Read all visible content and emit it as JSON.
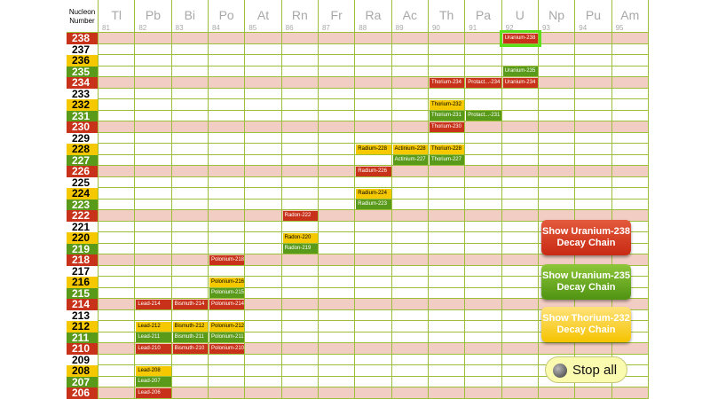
{
  "header": {
    "nucleon_title": [
      "Nucleon",
      "Number"
    ],
    "elements": [
      {
        "symbol": "Tl",
        "number": "81"
      },
      {
        "symbol": "Pb",
        "number": "82"
      },
      {
        "symbol": "Bi",
        "number": "83"
      },
      {
        "symbol": "Po",
        "number": "84"
      },
      {
        "symbol": "At",
        "number": "85"
      },
      {
        "symbol": "Rn",
        "number": "86"
      },
      {
        "symbol": "Fr",
        "number": "87"
      },
      {
        "symbol": "Ra",
        "number": "88"
      },
      {
        "symbol": "Ac",
        "number": "89"
      },
      {
        "symbol": "Th",
        "number": "90"
      },
      {
        "symbol": "Pa",
        "number": "91"
      },
      {
        "symbol": "U",
        "number": "92"
      },
      {
        "symbol": "Np",
        "number": "93"
      },
      {
        "symbol": "Pu",
        "number": "94"
      },
      {
        "symbol": "Am",
        "number": "95"
      }
    ]
  },
  "rows": [
    {
      "n": "238",
      "color": "red",
      "pink": true
    },
    {
      "n": "237",
      "color": "white",
      "pink": false
    },
    {
      "n": "236",
      "color": "yellow",
      "pink": false
    },
    {
      "n": "235",
      "color": "green",
      "pink": false
    },
    {
      "n": "234",
      "color": "red",
      "pink": true
    },
    {
      "n": "233",
      "color": "white",
      "pink": false
    },
    {
      "n": "232",
      "color": "yellow",
      "pink": false
    },
    {
      "n": "231",
      "color": "green",
      "pink": false
    },
    {
      "n": "230",
      "color": "red",
      "pink": true
    },
    {
      "n": "229",
      "color": "white",
      "pink": false
    },
    {
      "n": "228",
      "color": "yellow",
      "pink": false
    },
    {
      "n": "227",
      "color": "green",
      "pink": false
    },
    {
      "n": "226",
      "color": "red",
      "pink": true
    },
    {
      "n": "225",
      "color": "white",
      "pink": false
    },
    {
      "n": "224",
      "color": "yellow",
      "pink": false
    },
    {
      "n": "223",
      "color": "green",
      "pink": false
    },
    {
      "n": "222",
      "color": "red",
      "pink": true
    },
    {
      "n": "221",
      "color": "white",
      "pink": false
    },
    {
      "n": "220",
      "color": "yellow",
      "pink": false
    },
    {
      "n": "219",
      "color": "green",
      "pink": false
    },
    {
      "n": "218",
      "color": "red",
      "pink": true
    },
    {
      "n": "217",
      "color": "white",
      "pink": false
    },
    {
      "n": "216",
      "color": "yellow",
      "pink": false
    },
    {
      "n": "215",
      "color": "green",
      "pink": false
    },
    {
      "n": "214",
      "color": "red",
      "pink": true
    },
    {
      "n": "213",
      "color": "white",
      "pink": false
    },
    {
      "n": "212",
      "color": "yellow",
      "pink": false
    },
    {
      "n": "211",
      "color": "green",
      "pink": false
    },
    {
      "n": "210",
      "color": "red",
      "pink": true
    },
    {
      "n": "209",
      "color": "white",
      "pink": false
    },
    {
      "n": "208",
      "color": "yellow",
      "pink": false
    },
    {
      "n": "207",
      "color": "green",
      "pink": false
    },
    {
      "n": "206",
      "color": "red",
      "pink": true
    }
  ],
  "isotopes": [
    {
      "label": "Uranium-238",
      "element": "U",
      "mass": "238",
      "color": "red",
      "highlight": true
    },
    {
      "label": "Uranium-235",
      "element": "U",
      "mass": "235",
      "color": "green"
    },
    {
      "label": "Thorium-234",
      "element": "Th",
      "mass": "234",
      "color": "red"
    },
    {
      "label": "Protact...-234",
      "element": "Pa",
      "mass": "234",
      "color": "red"
    },
    {
      "label": "Uranium-234",
      "element": "U",
      "mass": "234",
      "color": "red"
    },
    {
      "label": "Thorium-232",
      "element": "Th",
      "mass": "232",
      "color": "yellow"
    },
    {
      "label": "Thorium-231",
      "element": "Th",
      "mass": "231",
      "color": "green"
    },
    {
      "label": "Protact...-231",
      "element": "Pa",
      "mass": "231",
      "color": "green"
    },
    {
      "label": "Thorium-230",
      "element": "Th",
      "mass": "230",
      "color": "red"
    },
    {
      "label": "Radium-228",
      "element": "Ra",
      "mass": "228",
      "color": "yellow"
    },
    {
      "label": "Actinium-228",
      "element": "Ac",
      "mass": "228",
      "color": "yellow"
    },
    {
      "label": "Thorium-228",
      "element": "Th",
      "mass": "228",
      "color": "yellow"
    },
    {
      "label": "Actinium-227",
      "element": "Ac",
      "mass": "227",
      "color": "green"
    },
    {
      "label": "Thorium-227",
      "element": "Th",
      "mass": "227",
      "color": "green"
    },
    {
      "label": "Radium-226",
      "element": "Ra",
      "mass": "226",
      "color": "red"
    },
    {
      "label": "Radium-224",
      "element": "Ra",
      "mass": "224",
      "color": "yellow"
    },
    {
      "label": "Radium-223",
      "element": "Ra",
      "mass": "223",
      "color": "green"
    },
    {
      "label": "Radon-222",
      "element": "Rn",
      "mass": "222",
      "color": "red"
    },
    {
      "label": "Radon-220",
      "element": "Rn",
      "mass": "220",
      "color": "yellow"
    },
    {
      "label": "Radon-219",
      "element": "Rn",
      "mass": "219",
      "color": "green"
    },
    {
      "label": "Polonium-218",
      "element": "Po",
      "mass": "218",
      "color": "red"
    },
    {
      "label": "Polonium-216",
      "element": "Po",
      "mass": "216",
      "color": "yellow"
    },
    {
      "label": "Polonium-215",
      "element": "Po",
      "mass": "215",
      "color": "green"
    },
    {
      "label": "Lead-214",
      "element": "Pb",
      "mass": "214",
      "color": "red"
    },
    {
      "label": "Bismuth-214",
      "element": "Bi",
      "mass": "214",
      "color": "red"
    },
    {
      "label": "Polonium-214",
      "element": "Po",
      "mass": "214",
      "color": "red"
    },
    {
      "label": "Lead-212",
      "element": "Pb",
      "mass": "212",
      "color": "yellow"
    },
    {
      "label": "Bismuth-212",
      "element": "Bi",
      "mass": "212",
      "color": "yellow"
    },
    {
      "label": "Polonium-212",
      "element": "Po",
      "mass": "212",
      "color": "yellow"
    },
    {
      "label": "Lead-211",
      "element": "Pb",
      "mass": "211",
      "color": "green"
    },
    {
      "label": "Bismuth-211",
      "element": "Bi",
      "mass": "211",
      "color": "green"
    },
    {
      "label": "Polonium-211",
      "element": "Po",
      "mass": "211",
      "color": "green"
    },
    {
      "label": "Lead-210",
      "element": "Pb",
      "mass": "210",
      "color": "red"
    },
    {
      "label": "Bismuth-210",
      "element": "Bi",
      "mass": "210",
      "color": "red"
    },
    {
      "label": "Polonium-210",
      "element": "Po",
      "mass": "210",
      "color": "red"
    },
    {
      "label": "Lead-208",
      "element": "Pb",
      "mass": "208",
      "color": "yellow"
    },
    {
      "label": "Lead-207",
      "element": "Pb",
      "mass": "207",
      "color": "green"
    },
    {
      "label": "Lead-206",
      "element": "Pb",
      "mass": "206",
      "color": "red"
    }
  ],
  "buttons": {
    "uranium238": {
      "line1": "Show Uranium-238",
      "line2": "Decay Chain"
    },
    "uranium235": {
      "line1": "Show Uranium-235",
      "line2": "Decay Chain"
    },
    "thorium232": {
      "line1": "Show Thorium-232",
      "line2": "Decay Chain"
    },
    "stop_all": "Stop all"
  },
  "colors": {
    "red": "#c8321a",
    "yellow": "#f5c800",
    "green": "#5a9a1a",
    "highlight": "#5ce01a",
    "grid": "#9cbf3a",
    "pink_band": "#f2cdc3"
  }
}
